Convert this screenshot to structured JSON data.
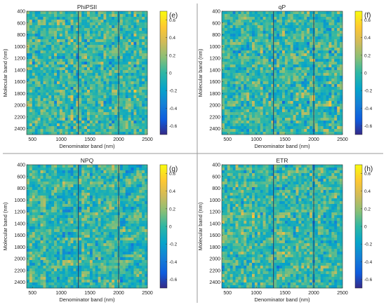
{
  "chart_data": [
    {
      "type": "heatmap",
      "panel_letter": "(e)",
      "title": "PhiPSII",
      "xlabel": "Denominator band (nm)",
      "ylabel": "Molecular band (nm)",
      "xlim": [
        400,
        2500
      ],
      "ylim": [
        400,
        2500
      ],
      "xticks": [
        500,
        1000,
        1500,
        2000,
        2500
      ],
      "yticks": [
        400,
        600,
        800,
        1000,
        1200,
        1400,
        1600,
        1800,
        2000,
        2200,
        2400
      ],
      "colorbar_ticks": [
        0.6,
        0.4,
        0.2,
        0,
        -0.2,
        -0.4,
        -0.6
      ],
      "colorbar_range": [
        -0.7,
        0.7
      ],
      "colormap": "parula",
      "seed": 11
    },
    {
      "type": "heatmap",
      "panel_letter": "(f)",
      "title": "qP",
      "xlabel": "Denominator band (nm)",
      "ylabel": "Molecular band (nm)",
      "xlim": [
        400,
        2500
      ],
      "ylim": [
        400,
        2500
      ],
      "xticks": [
        500,
        1000,
        1500,
        2000,
        2500
      ],
      "yticks": [
        400,
        600,
        800,
        1000,
        1200,
        1400,
        1600,
        1800,
        2000,
        2200,
        2400
      ],
      "colorbar_ticks": [
        0.6,
        0.4,
        0.2,
        0,
        -0.2,
        -0.4,
        -0.6
      ],
      "colorbar_range": [
        -0.7,
        0.7
      ],
      "colormap": "parula",
      "seed": 23
    },
    {
      "type": "heatmap",
      "panel_letter": "(g)",
      "title": "NPQ",
      "xlabel": "Denominator band (nm)",
      "ylabel": "Molecular band (nm)",
      "xlim": [
        400,
        2500
      ],
      "ylim": [
        400,
        2500
      ],
      "xticks": [
        500,
        1000,
        1500,
        2000,
        2500
      ],
      "yticks": [
        400,
        600,
        800,
        1000,
        1200,
        1400,
        1600,
        1800,
        2000,
        2200,
        2400
      ],
      "colorbar_ticks": [
        0.6,
        0.4,
        0.2,
        0,
        -0.2,
        -0.4,
        -0.6
      ],
      "colorbar_range": [
        -0.7,
        0.7
      ],
      "colormap": "parula",
      "seed": 37
    },
    {
      "type": "heatmap",
      "panel_letter": "(h)",
      "title": "ETR",
      "xlabel": "Denominator band (nm)",
      "ylabel": "Molecular band (nm)",
      "xlim": [
        400,
        2500
      ],
      "ylim": [
        400,
        2500
      ],
      "xticks": [
        500,
        1000,
        1500,
        2000,
        2500
      ],
      "yticks": [
        400,
        600,
        800,
        1000,
        1200,
        1400,
        1600,
        1800,
        2000,
        2200,
        2400
      ],
      "colorbar_ticks": [
        0.6,
        0.4,
        0.2,
        0,
        -0.2,
        -0.4,
        -0.6
      ],
      "colorbar_range": [
        -0.7,
        0.7
      ],
      "colormap": "parula",
      "seed": 53
    }
  ]
}
